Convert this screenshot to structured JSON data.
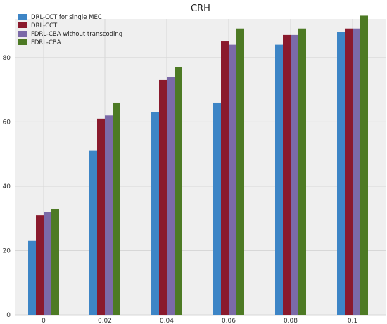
{
  "chart_data": {
    "type": "bar",
    "title": "CRH",
    "xlabel": "",
    "ylabel": "",
    "categories": [
      "0",
      "0.02",
      "0.04",
      "0.06",
      "0.08",
      "0.1"
    ],
    "ylim": [
      0,
      92
    ],
    "yticks": [
      "0",
      "20",
      "40",
      "60",
      "80"
    ],
    "grid": true,
    "legend_position": "top-left",
    "series": [
      {
        "name": "DRL-CCT for single MEC",
        "color": "#3d85c6",
        "values": [
          23,
          51,
          63,
          66,
          84,
          88
        ]
      },
      {
        "name": "DRL-CCT",
        "color": "#8a1a2d",
        "values": [
          31,
          61,
          73,
          85,
          87,
          89
        ]
      },
      {
        "name": "FDRL-CBA without transcoding",
        "color": "#7b6aa8",
        "values": [
          32,
          62,
          74,
          84,
          87,
          89
        ]
      },
      {
        "name": "FDRL-CBA",
        "color": "#4d7a24",
        "values": [
          33,
          66,
          77,
          89,
          89,
          93
        ]
      }
    ]
  }
}
